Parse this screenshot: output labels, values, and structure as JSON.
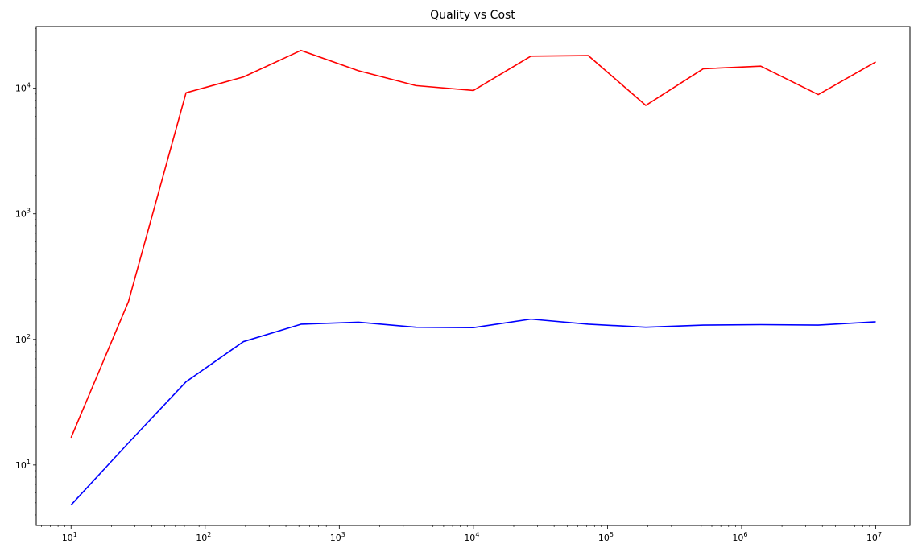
{
  "chart_data": {
    "type": "line",
    "title": "Quality vs Cost",
    "xlabel": "",
    "ylabel": "",
    "x_scale": "log",
    "y_scale": "log",
    "xlim": [
      5.5,
      18000000
    ],
    "ylim": [
      3.3,
      31000
    ],
    "grid": false,
    "legend": "none",
    "x_ticks": [
      {
        "value": 10,
        "base": "10",
        "exp": "1"
      },
      {
        "value": 100,
        "base": "10",
        "exp": "2"
      },
      {
        "value": 1000,
        "base": "10",
        "exp": "3"
      },
      {
        "value": 10000,
        "base": "10",
        "exp": "4"
      },
      {
        "value": 100000,
        "base": "10",
        "exp": "5"
      },
      {
        "value": 1000000,
        "base": "10",
        "exp": "6"
      },
      {
        "value": 10000000,
        "base": "10",
        "exp": "7"
      }
    ],
    "y_ticks": [
      {
        "value": 10,
        "base": "10",
        "exp": "1"
      },
      {
        "value": 100,
        "base": "10",
        "exp": "2"
      },
      {
        "value": 1000,
        "base": "10",
        "exp": "3"
      },
      {
        "value": 10000,
        "base": "10",
        "exp": "4"
      }
    ],
    "x": [
      10,
      26.8,
      72,
      193,
      518,
      1389,
      3728,
      10000,
      26827,
      71969,
      193070,
      517947,
      1389495,
      3727594,
      10000000
    ],
    "series": [
      {
        "color": "#ff0000",
        "values": [
          16.5,
          200,
          9200,
          12300,
          20000,
          13800,
          10500,
          9600,
          18000,
          18200,
          7300,
          14300,
          15000,
          8900,
          16200
        ]
      },
      {
        "color": "#0000ff",
        "values": [
          4.8,
          15,
          46,
          96,
          132,
          137,
          125,
          124,
          145,
          132,
          125,
          130,
          131,
          130,
          138
        ]
      }
    ]
  }
}
